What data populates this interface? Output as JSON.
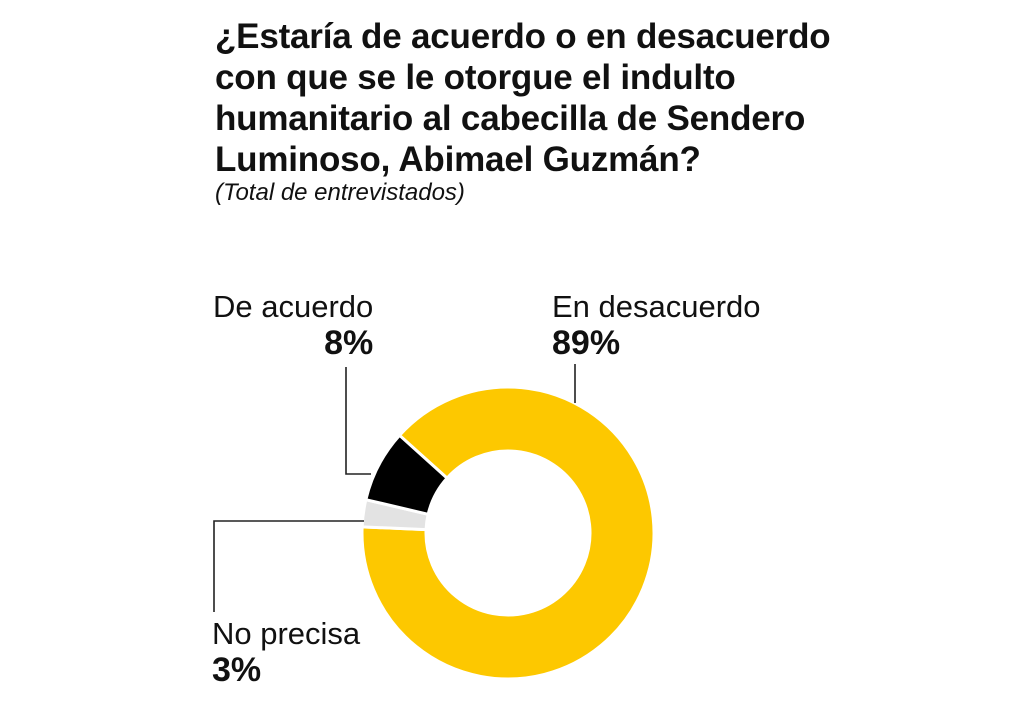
{
  "chart_data": {
    "type": "pie",
    "title": "¿Estaría de acuerdo o en desacuerdo con que se le otorgue el indulto humanitario al cabecilla de Sendero Luminoso, Abimael Guzmán?",
    "subtitle": "(Total de entrevistados)",
    "categories": [
      "En desacuerdo",
      "No precisa",
      "De acuerdo"
    ],
    "values": [
      89,
      3,
      8
    ],
    "value_labels": [
      "89%",
      "3%",
      "8%"
    ],
    "unit": "%",
    "donut": true,
    "colors": [
      "#FDC800",
      "#E3E3E3",
      "#000000"
    ]
  },
  "labels": {
    "en_desacuerdo_name": "En desacuerdo",
    "en_desacuerdo_value": "89%",
    "de_acuerdo_name": "De acuerdo",
    "de_acuerdo_value": "8%",
    "no_precisa_name": "No precisa",
    "no_precisa_value": "3%"
  }
}
